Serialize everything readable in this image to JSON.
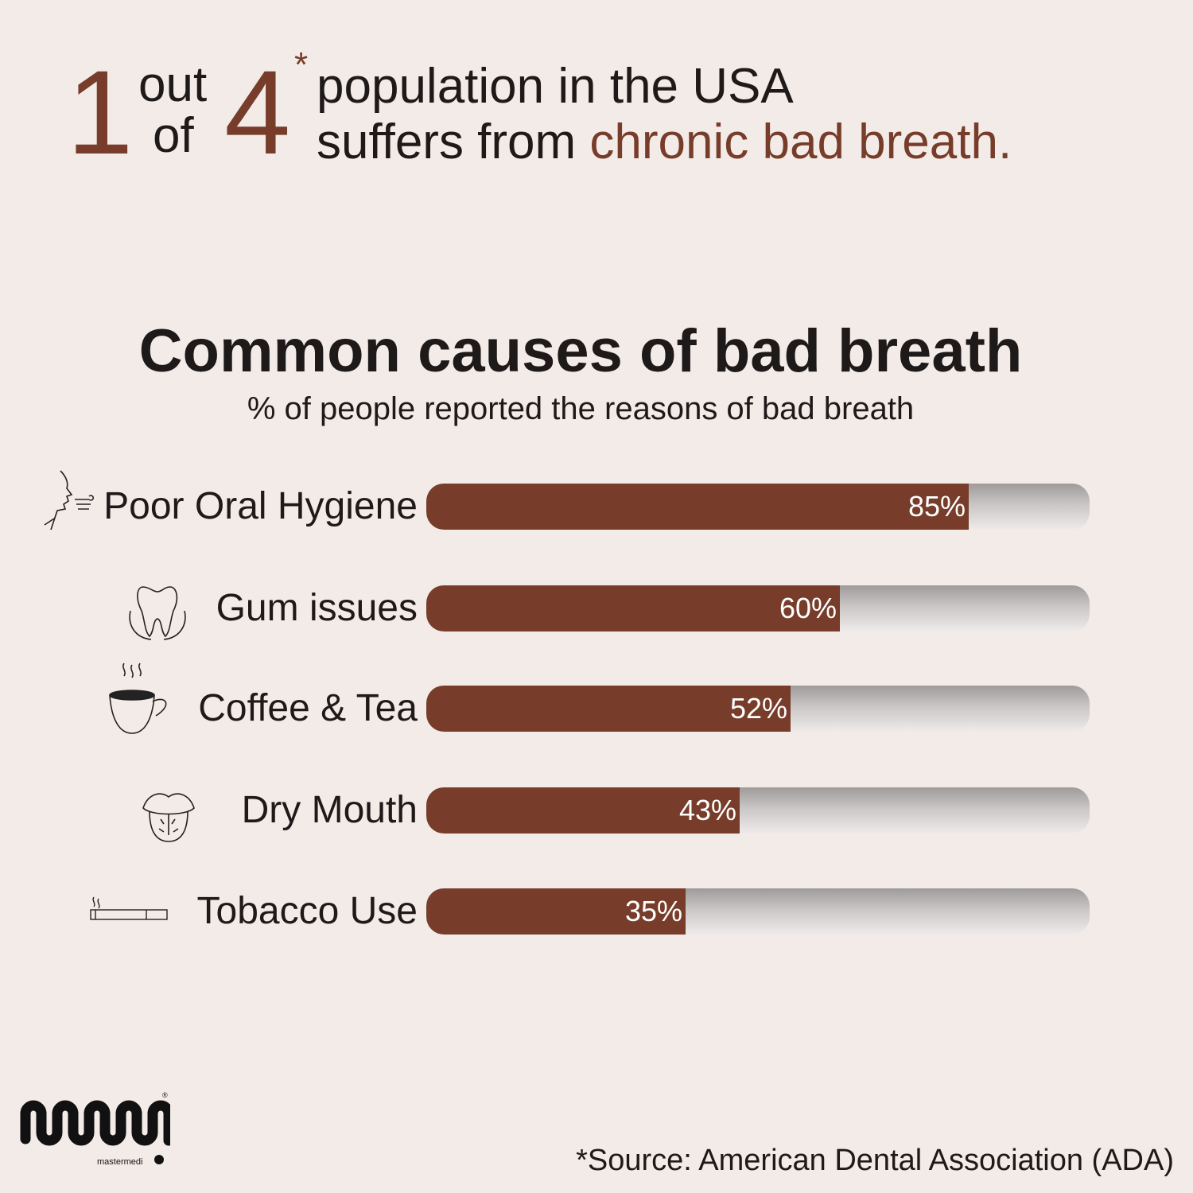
{
  "headline": {
    "num1": "1",
    "out": "out",
    "of": "of",
    "num2": "4",
    "asterisk": "*",
    "line1": "population in the USA",
    "line2_prefix": "suffers from ",
    "line2_accent": "chronic bad breath."
  },
  "colors": {
    "accent": "#773d2a",
    "background": "#f3ebe8",
    "track": "#b5b2b1"
  },
  "chart_data": {
    "type": "bar",
    "orientation": "horizontal",
    "title": "Common causes of bad breath",
    "subtitle": "% of people reported the reasons of bad breath",
    "categories": [
      "Poor Oral Hygiene",
      "Gum issues",
      "Coffee & Tea",
      "Dry Mouth",
      "Tobacco Use"
    ],
    "values": [
      85,
      60,
      52,
      43,
      35
    ],
    "value_labels": [
      "85%",
      "60%",
      "52%",
      "43%",
      "35%"
    ],
    "icons": [
      "breath-face-icon",
      "tooth-icon",
      "coffee-cup-icon",
      "tongue-mouth-icon",
      "cigarette-icon"
    ],
    "xlim": [
      0,
      100
    ]
  },
  "footer": {
    "source": "*Source: American Dental Association (ADA)",
    "logo_text": "mastermedi"
  }
}
